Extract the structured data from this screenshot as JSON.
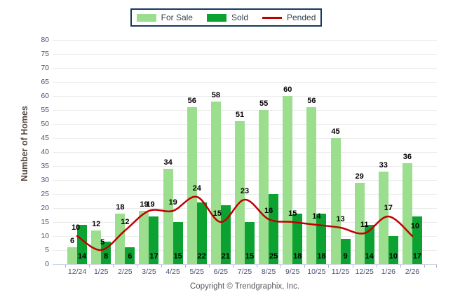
{
  "legend": {
    "items": [
      {
        "label": "For Sale",
        "color": "#9bde8d",
        "type": "swatch"
      },
      {
        "label": "Sold",
        "color": "#0ca232",
        "type": "swatch"
      },
      {
        "label": "Pended",
        "color": "#c00000",
        "type": "line"
      }
    ]
  },
  "footer": {
    "copyright": "Copyright © Trendgraphix, Inc."
  },
  "chart_data": {
    "type": "bar",
    "title": "",
    "xlabel": "",
    "ylabel": "Number of Homes",
    "ylim": [
      0,
      80
    ],
    "y_tick_step": 5,
    "grid": true,
    "legend_position": "top-center",
    "categories": [
      "12/24",
      "1/25",
      "2/25",
      "3/25",
      "4/25",
      "5/25",
      "6/25",
      "7/25",
      "8/25",
      "9/25",
      "10/25",
      "11/25",
      "12/25",
      "1/26",
      "2/26"
    ],
    "series": [
      {
        "name": "For Sale",
        "type": "bar",
        "color": "#9bde8d",
        "values": [
          6,
          12,
          18,
          19,
          34,
          56,
          58,
          51,
          55,
          60,
          56,
          45,
          29,
          33,
          36
        ]
      },
      {
        "name": "Sold",
        "type": "bar",
        "color": "#0ca232",
        "values": [
          14,
          8,
          6,
          17,
          15,
          22,
          21,
          15,
          25,
          18,
          18,
          9,
          14,
          10,
          17
        ]
      },
      {
        "name": "Pended",
        "type": "line",
        "color": "#c00000",
        "values": [
          10,
          5,
          12,
          19,
          19,
          24,
          15,
          23,
          16,
          15,
          14,
          13,
          11,
          17,
          10
        ]
      }
    ]
  }
}
